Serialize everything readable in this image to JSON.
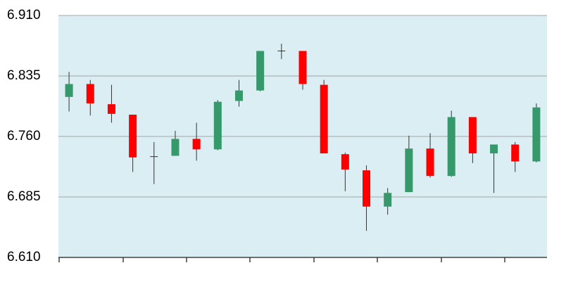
{
  "chart_data": {
    "type": "candlestick",
    "open": [
      6.809,
      6.825,
      6.8,
      6.787,
      6.735,
      6.736,
      6.757,
      6.744,
      6.804,
      6.817,
      6.866,
      6.866,
      6.824,
      6.738,
      6.718,
      6.673,
      6.691,
      6.745,
      6.711,
      6.784,
      6.739,
      6.75,
      6.729
    ],
    "high": [
      6.84,
      6.83,
      6.824,
      6.787,
      6.753,
      6.767,
      6.777,
      6.805,
      6.83,
      6.866,
      6.875,
      6.866,
      6.83,
      6.74,
      6.724,
      6.696,
      6.761,
      6.764,
      6.792,
      6.784,
      6.75,
      6.753,
      6.801
    ],
    "low": [
      6.791,
      6.786,
      6.777,
      6.716,
      6.701,
      6.736,
      6.73,
      6.743,
      6.797,
      6.816,
      6.856,
      6.818,
      6.739,
      6.692,
      6.643,
      6.663,
      6.691,
      6.709,
      6.71,
      6.727,
      6.69,
      6.716,
      6.728
    ],
    "close": [
      6.825,
      6.801,
      6.788,
      6.734,
      6.735,
      6.757,
      6.744,
      6.803,
      6.817,
      6.866,
      6.866,
      6.825,
      6.739,
      6.719,
      6.673,
      6.69,
      6.745,
      6.711,
      6.784,
      6.739,
      6.75,
      6.729,
      6.796
    ],
    "up_color": "#36996b",
    "down_color": "#ff0000",
    "ylim": [
      6.61,
      6.91
    ],
    "yticks": [
      {
        "value": 6.61,
        "label": "6.610"
      },
      6.685,
      {
        "value": 6.76,
        "label": "6.760"
      },
      6.835,
      {
        "value": 6.91,
        "label": "6.910"
      }
    ],
    "grid": true
  }
}
